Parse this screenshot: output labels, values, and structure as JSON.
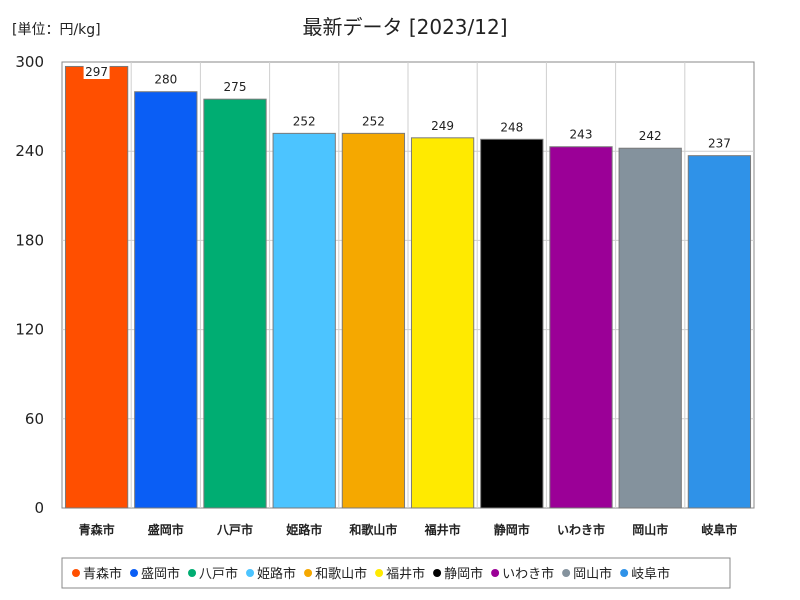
{
  "chart_data": {
    "type": "bar",
    "title": "最新データ [2023/12]",
    "unit_label": "[単位：円/kg]",
    "categories": [
      "青森市",
      "盛岡市",
      "八戸市",
      "姫路市",
      "和歌山市",
      "福井市",
      "静岡市",
      "いわき市",
      "岡山市",
      "岐阜市"
    ],
    "values": [
      297,
      280,
      275,
      252,
      252,
      249,
      248,
      243,
      242,
      237
    ],
    "colors": [
      "#ff4f00",
      "#0a5ef5",
      "#00ad72",
      "#4cc4ff",
      "#f5a800",
      "#ffea00",
      "#000000",
      "#9b0097",
      "#84929d",
      "#2f92e8"
    ],
    "ylim": [
      0,
      300
    ],
    "yticks": [
      0,
      60,
      120,
      180,
      240,
      300
    ],
    "grid": true,
    "legend": {
      "position": "bottom",
      "entries": [
        "青森市",
        "盛岡市",
        "八戸市",
        "姫路市",
        "和歌山市",
        "福井市",
        "静岡市",
        "いわき市",
        "岡山市",
        "岐阜市"
      ]
    }
  }
}
